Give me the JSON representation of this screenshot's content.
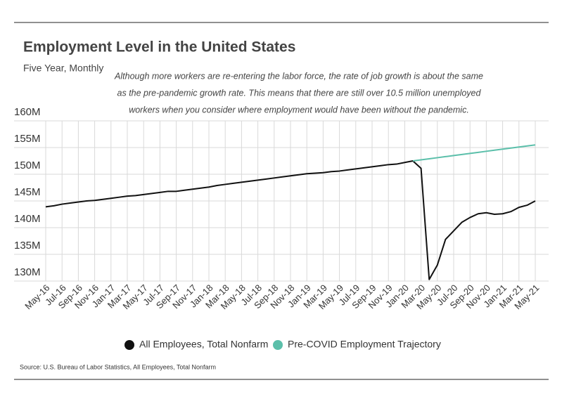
{
  "chart_data": {
    "type": "line",
    "title": "Employment Level in the United States",
    "subtitle": "Five Year, Monthly",
    "annotation": [
      "Although more workers are re-entering the labor force, the rate of job growth is about the same",
      "as the pre-pandemic growth rate. This means that there are still over 10.5 million unemployed",
      "workers when you consider where employment would have been without the pandemic."
    ],
    "source": "Source:  U.S. Bureau of Labor Statistics, All Employees, Total Nonfarm",
    "categories": [
      "May-16",
      null,
      "Jul-16",
      null,
      "Sep-16",
      null,
      "Nov-16",
      null,
      "Jan-17",
      null,
      "Mar-17",
      null,
      "May-17",
      null,
      "Jul-17",
      null,
      "Sep-17",
      null,
      "Nov-17",
      null,
      "Jan-18",
      null,
      "Mar-18",
      null,
      "May-18",
      null,
      "Jul-18",
      null,
      "Sep-18",
      null,
      "Nov-18",
      null,
      "Jan-19",
      null,
      "Mar-19",
      null,
      "May-19",
      null,
      "Jul-19",
      null,
      "Sep-19",
      null,
      "Nov-19",
      null,
      "Jan-20",
      null,
      "Mar-20",
      null,
      "May-20",
      null,
      "Jul-20",
      null,
      "Sep-20",
      null,
      "Nov-20",
      null,
      "Jan-21",
      null,
      "Mar-21",
      null,
      "May-21"
    ],
    "series": [
      {
        "name": "All Employees, Total Nonfarm",
        "color": "#111111",
        "values": [
          143.9,
          144.1,
          144.4,
          144.6,
          144.8,
          145.0,
          145.1,
          145.3,
          145.5,
          145.7,
          145.9,
          146.0,
          146.2,
          146.4,
          146.6,
          146.8,
          146.8,
          147.0,
          147.2,
          147.4,
          147.6,
          147.9,
          148.1,
          148.3,
          148.5,
          148.7,
          148.9,
          149.1,
          149.3,
          149.5,
          149.7,
          149.9,
          150.1,
          150.2,
          150.3,
          150.5,
          150.6,
          150.8,
          151.0,
          151.2,
          151.4,
          151.6,
          151.8,
          151.9,
          152.2,
          152.5,
          151.1,
          130.3,
          133.0,
          137.8,
          139.4,
          141.0,
          141.9,
          142.6,
          142.8,
          142.5,
          142.6,
          143.0,
          143.8,
          144.2,
          145.0
        ]
      },
      {
        "name": "Pre-COVID Employment Trajectory",
        "color": "#5bbfaa",
        "values": [
          null,
          null,
          null,
          null,
          null,
          null,
          null,
          null,
          null,
          null,
          null,
          null,
          null,
          null,
          null,
          null,
          null,
          null,
          null,
          null,
          null,
          null,
          null,
          null,
          null,
          null,
          null,
          null,
          null,
          null,
          null,
          null,
          null,
          null,
          null,
          null,
          null,
          null,
          null,
          null,
          null,
          null,
          null,
          null,
          null,
          152.5,
          152.7,
          152.9,
          153.1,
          153.3,
          153.5,
          153.7,
          153.9,
          154.1,
          154.3,
          154.5,
          154.7,
          154.9,
          155.1,
          155.3,
          155.5
        ]
      }
    ],
    "ylim": [
      130,
      160
    ],
    "yticks": [
      {
        "value": 130,
        "label": "130M"
      },
      {
        "value": 135,
        "label": "135M"
      },
      {
        "value": 140,
        "label": "140M"
      },
      {
        "value": 145,
        "label": "145M"
      },
      {
        "value": 150,
        "label": "150M"
      },
      {
        "value": 155,
        "label": "155M"
      },
      {
        "value": 160,
        "label": "160M"
      }
    ],
    "grid": true,
    "legend": "bottom"
  }
}
